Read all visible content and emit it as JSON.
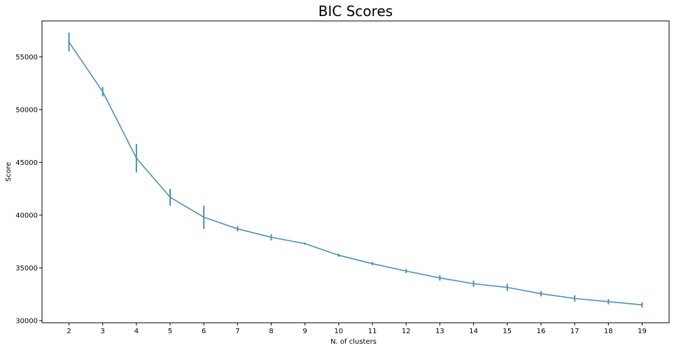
{
  "chart_data": {
    "type": "line",
    "title": "BIC Scores",
    "xlabel": "N. of clusters",
    "ylabel": "Score",
    "x": [
      2,
      3,
      4,
      5,
      6,
      7,
      8,
      9,
      10,
      11,
      12,
      13,
      14,
      15,
      16,
      17,
      18,
      19
    ],
    "series": [
      {
        "values": [
          56400,
          51700,
          45400,
          41700,
          39800,
          38700,
          37900,
          37300,
          36200,
          35400,
          34700,
          34050,
          33500,
          33150,
          32550,
          32100,
          31800,
          31500
        ],
        "errors": [
          900,
          450,
          1350,
          800,
          1100,
          250,
          300,
          100,
          150,
          150,
          200,
          250,
          300,
          350,
          250,
          300,
          250,
          250
        ],
        "color": "#4a90b8"
      }
    ],
    "ylim": [
      29800,
      58400
    ],
    "yticks": [
      30000,
      35000,
      40000,
      45000,
      50000,
      55000
    ],
    "xticks": [
      2,
      3,
      4,
      5,
      6,
      7,
      8,
      9,
      10,
      11,
      12,
      13,
      14,
      15,
      16,
      17,
      18,
      19
    ],
    "xlim": [
      1.2,
      19.8
    ],
    "grid": false,
    "legend": "none"
  }
}
